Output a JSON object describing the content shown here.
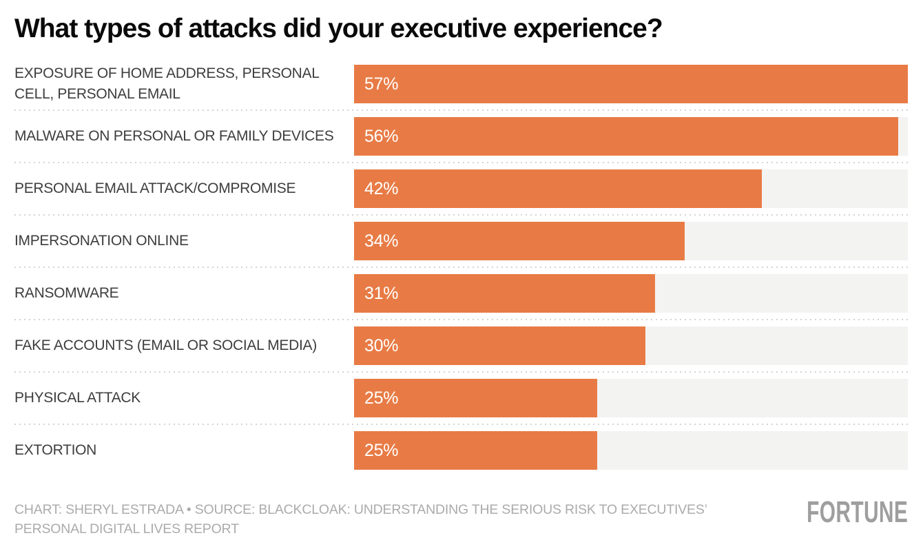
{
  "title": "What types of attacks did your executive experience?",
  "chart_data": {
    "type": "bar",
    "orientation": "horizontal",
    "title": "What types of attacks did your executive experience?",
    "categories": [
      "EXPOSURE OF HOME ADDRESS, PERSONAL CELL, PERSONAL EMAIL",
      "MALWARE ON PERSONAL OR FAMILY DEVICES",
      "PERSONAL EMAIL ATTACK/COMPROMISE",
      "IMPERSONATION ONLINE",
      "RANSOMWARE",
      "FAKE ACCOUNTS (EMAIL OR SOCIAL MEDIA)",
      "PHYSICAL ATTACK",
      "EXTORTION"
    ],
    "values": [
      57,
      56,
      42,
      34,
      31,
      30,
      25,
      25
    ],
    "value_labels": [
      "57%",
      "56%",
      "42%",
      "34%",
      "31%",
      "30%",
      "25%",
      "25%"
    ],
    "value_suffix": "%",
    "xlim": [
      0,
      57
    ],
    "grid": "dotted-row-separators",
    "legend": "none",
    "bar_color": "#e87b45",
    "track_color": "#f3f3f2",
    "value_label_color": "#ffffff",
    "category_label_color": "#3d3d3d"
  },
  "footer": {
    "credit": "CHART: SHERYL ESTRADA • SOURCE: BLACKCLOAK: UNDERSTANDING THE SERIOUS RISK TO EXECUTIVES’ PERSONAL DIGITAL LIVES REPORT",
    "logo": "FORTUNE"
  }
}
